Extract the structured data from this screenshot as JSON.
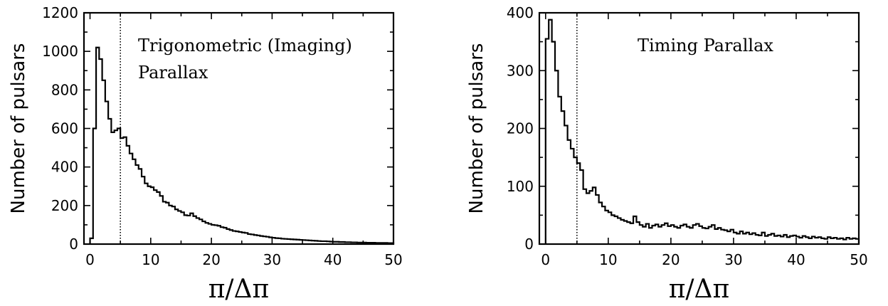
{
  "chart_data": [
    {
      "type": "histogram",
      "title": "",
      "annotation": [
        "Trigonometric (Imaging)",
        "Parallax"
      ],
      "xlabel": "π/Δπ",
      "ylabel": "Number of pulsars",
      "xlim": [
        -1,
        50
      ],
      "ylim": [
        0,
        1200
      ],
      "xticks": [
        0,
        10,
        20,
        30,
        40,
        50
      ],
      "yticks": [
        0,
        200,
        400,
        600,
        800,
        1000,
        1200
      ],
      "reference_line_x": 5,
      "bin_width": 0.5,
      "bin_start": 0,
      "counts": [
        30,
        600,
        1020,
        960,
        850,
        740,
        650,
        580,
        590,
        600,
        550,
        555,
        510,
        470,
        440,
        410,
        390,
        350,
        315,
        300,
        295,
        280,
        270,
        250,
        220,
        215,
        200,
        195,
        180,
        172,
        165,
        150,
        148,
        160,
        145,
        135,
        128,
        118,
        110,
        105,
        100,
        98,
        95,
        88,
        85,
        78,
        73,
        68,
        66,
        63,
        60,
        58,
        52,
        50,
        47,
        45,
        42,
        40,
        38,
        35,
        33,
        31,
        30,
        28,
        27,
        26,
        25,
        24,
        23,
        22,
        21,
        20,
        19,
        18,
        17,
        16,
        15,
        15,
        14,
        13,
        12,
        12,
        11,
        11,
        10,
        10,
        9,
        9,
        8,
        8,
        8,
        7,
        7,
        7,
        6,
        6,
        6,
        6,
        5,
        5
      ]
    },
    {
      "type": "histogram",
      "title": "",
      "annotation": [
        "Timing Parallax"
      ],
      "xlabel": "π/Δπ",
      "ylabel": "Number of pulsars",
      "xlim": [
        -1,
        50
      ],
      "ylim": [
        0,
        400
      ],
      "xticks": [
        0,
        10,
        20,
        30,
        40,
        50
      ],
      "yticks": [
        0,
        100,
        200,
        300,
        400
      ],
      "reference_line_x": 5,
      "bin_width": 0.5,
      "bin_start": 0,
      "counts": [
        355,
        388,
        350,
        300,
        255,
        230,
        205,
        180,
        165,
        150,
        140,
        128,
        95,
        88,
        92,
        98,
        85,
        72,
        65,
        58,
        55,
        50,
        48,
        45,
        42,
        40,
        38,
        36,
        48,
        38,
        33,
        30,
        35,
        28,
        32,
        34,
        30,
        33,
        36,
        31,
        33,
        30,
        28,
        32,
        34,
        30,
        28,
        33,
        35,
        31,
        28,
        27,
        30,
        33,
        26,
        28,
        25,
        24,
        22,
        25,
        20,
        18,
        22,
        18,
        20,
        17,
        19,
        16,
        15,
        20,
        14,
        16,
        18,
        14,
        15,
        13,
        16,
        12,
        14,
        15,
        13,
        11,
        14,
        12,
        10,
        13,
        11,
        12,
        10,
        9,
        12,
        10,
        11,
        9,
        10,
        8,
        11,
        9,
        10,
        9
      ]
    }
  ]
}
